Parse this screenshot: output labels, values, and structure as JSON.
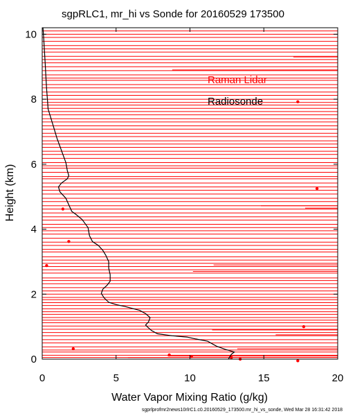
{
  "chart_data": {
    "type": "line",
    "title": "sgpRLC1, mr_hi vs Sonde for 20160529 173500",
    "xlabel": "Water Vapor Mixing Ratio (g/kg)",
    "ylabel": "Height (km)",
    "xlim": [
      0,
      20
    ],
    "ylim": [
      0,
      10.2
    ],
    "x_ticks": [
      "0",
      "5",
      "10",
      "15",
      "20"
    ],
    "y_ticks": [
      "0",
      "2",
      "4",
      "6",
      "8",
      "10"
    ],
    "legend": [
      {
        "label": "Raman Lidar",
        "color": "#ff0000"
      },
      {
        "label": "Radiosonde",
        "color": "#000000"
      }
    ],
    "footer": "sgprlprofmr2news10rlrC1.c0.20160529_173500.mr_hi_vs_sonde, Wed Mar 28 16:31:42 2018",
    "series": [
      {
        "name": "Radiosonde",
        "color": "#000000",
        "points": [
          [
            12.6,
            0.0
          ],
          [
            12.8,
            0.15
          ],
          [
            13.0,
            0.22
          ],
          [
            12.4,
            0.3
          ],
          [
            11.8,
            0.4
          ],
          [
            11.2,
            0.55
          ],
          [
            10.4,
            0.62
          ],
          [
            9.8,
            0.68
          ],
          [
            8.8,
            0.72
          ],
          [
            7.8,
            0.78
          ],
          [
            7.4,
            0.88
          ],
          [
            7.1,
            1.0
          ],
          [
            7.0,
            1.05
          ],
          [
            7.2,
            1.15
          ],
          [
            7.3,
            1.28
          ],
          [
            7.0,
            1.4
          ],
          [
            6.6,
            1.5
          ],
          [
            6.2,
            1.55
          ],
          [
            5.6,
            1.62
          ],
          [
            5.0,
            1.68
          ],
          [
            4.5,
            1.75
          ],
          [
            4.2,
            1.88
          ],
          [
            4.0,
            2.02
          ],
          [
            4.1,
            2.15
          ],
          [
            4.4,
            2.28
          ],
          [
            4.6,
            2.4
          ],
          [
            4.6,
            2.6
          ],
          [
            4.5,
            2.8
          ],
          [
            4.5,
            3.0
          ],
          [
            4.3,
            3.2
          ],
          [
            4.1,
            3.35
          ],
          [
            3.8,
            3.5
          ],
          [
            3.4,
            3.62
          ],
          [
            3.2,
            3.8
          ],
          [
            3.1,
            4.05
          ],
          [
            2.7,
            4.3
          ],
          [
            2.3,
            4.45
          ],
          [
            2.0,
            4.55
          ],
          [
            1.8,
            4.75
          ],
          [
            1.6,
            4.95
          ],
          [
            1.2,
            5.15
          ],
          [
            1.1,
            5.3
          ],
          [
            1.3,
            5.42
          ],
          [
            1.7,
            5.55
          ],
          [
            1.8,
            5.65
          ],
          [
            1.7,
            5.8
          ],
          [
            1.6,
            6.05
          ],
          [
            1.4,
            6.3
          ],
          [
            1.2,
            6.55
          ],
          [
            1.0,
            6.8
          ],
          [
            0.8,
            7.1
          ],
          [
            0.6,
            7.4
          ],
          [
            0.4,
            7.7
          ],
          [
            0.35,
            8.0
          ],
          [
            0.3,
            8.3
          ],
          [
            0.25,
            8.7
          ],
          [
            0.2,
            9.1
          ],
          [
            0.15,
            9.5
          ],
          [
            0.1,
            9.9
          ],
          [
            0.05,
            10.2
          ]
        ]
      }
    ],
    "lidar_levels": [
      0.05,
      0.12,
      0.22,
      0.28,
      0.38,
      0.5,
      0.6,
      0.72,
      0.82,
      0.92,
      1.02,
      1.12,
      1.2,
      1.28,
      1.38,
      1.46,
      1.55,
      1.65,
      1.74,
      1.83,
      1.9,
      2.0,
      2.1,
      2.2,
      2.32,
      2.42,
      2.5,
      2.65,
      2.75,
      2.85,
      2.95,
      3.05,
      3.15,
      3.3,
      3.38,
      3.5,
      3.6,
      3.72,
      3.85,
      3.95,
      4.05,
      4.15,
      4.28,
      4.38,
      4.5,
      4.62,
      4.72,
      4.85,
      4.95,
      5.08,
      5.2,
      5.3,
      5.42,
      5.55,
      5.62,
      5.75,
      5.88,
      5.95,
      6.05,
      6.18,
      6.3,
      6.4,
      6.52,
      6.62,
      6.72,
      6.85,
      6.95,
      7.08,
      7.18,
      7.3,
      7.4,
      7.52,
      7.62,
      7.72,
      7.82,
      7.9,
      8.0,
      8.12,
      8.22,
      8.35,
      8.45,
      8.58,
      8.65,
      8.75,
      8.88,
      9.0,
      9.12,
      9.22,
      9.32,
      9.45,
      9.55,
      9.65,
      9.78,
      9.9,
      10.0,
      10.1
    ],
    "lidar_partial_segments": [
      [
        5.8,
        20,
        0.05
      ],
      [
        8.5,
        20,
        0.1
      ],
      [
        13.2,
        20,
        0.32
      ],
      [
        11.5,
        20,
        0.9
      ],
      [
        15.8,
        20,
        0.75
      ],
      [
        10.2,
        20,
        2.7
      ],
      [
        11.6,
        20,
        2.9
      ],
      [
        14.8,
        20,
        4.72
      ],
      [
        17.8,
        20,
        4.65
      ],
      [
        8.8,
        20,
        8.9
      ],
      [
        17.0,
        20,
        9.3
      ]
    ],
    "lidar_points": [
      [
        12.8,
        0.05
      ],
      [
        13.4,
        0.0
      ],
      [
        10.1,
        0.08
      ],
      [
        8.6,
        0.13
      ],
      [
        17.3,
        -0.05
      ],
      [
        2.1,
        0.32
      ],
      [
        17.7,
        1.0
      ],
      [
        0.3,
        2.88
      ],
      [
        1.8,
        3.62
      ],
      [
        1.4,
        4.62
      ],
      [
        18.6,
        5.25
      ],
      [
        17.3,
        7.92
      ]
    ]
  }
}
